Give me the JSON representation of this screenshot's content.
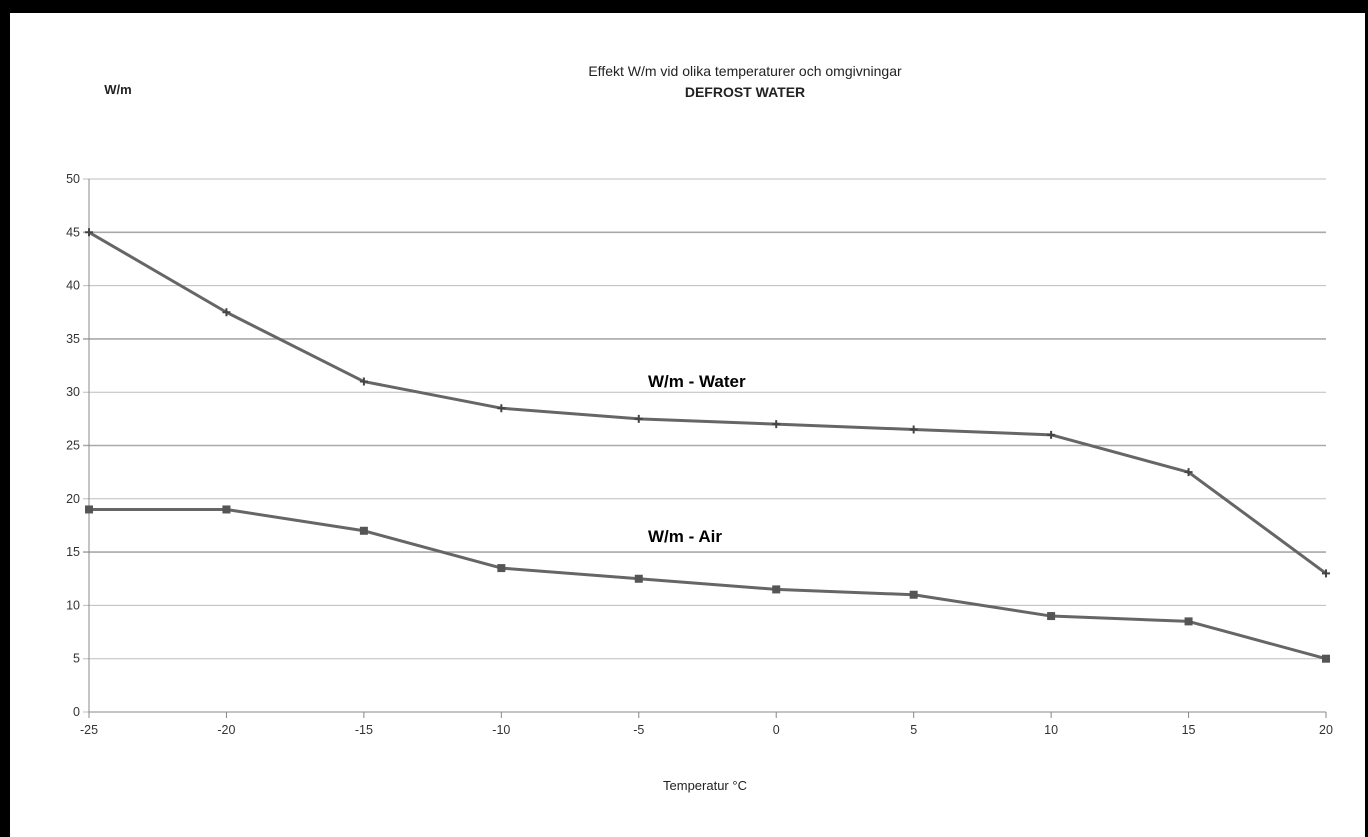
{
  "chart_data": {
    "type": "line",
    "title": "Effekt W/m vid olika temperaturer och omgivningar",
    "subtitle": "DEFROST WATER",
    "ylabel": "W/m",
    "xlabel": "Temperatur °C",
    "x": [
      -25,
      -20,
      -15,
      -10,
      -5,
      0,
      5,
      10,
      15,
      20
    ],
    "xlim": [
      -25,
      20
    ],
    "ylim": [
      0,
      50
    ],
    "yticks": [
      0,
      5,
      10,
      15,
      20,
      25,
      30,
      35,
      40,
      45,
      50
    ],
    "xticks": [
      "-25",
      "-20",
      "-15",
      "-10",
      "-5",
      "0",
      "5",
      "10",
      "15",
      "20"
    ],
    "grid": true,
    "series": [
      {
        "name": "W/m - Water",
        "marker": "plus",
        "color": "#666666",
        "values": [
          45,
          37.5,
          31,
          28.5,
          27.5,
          27,
          26.5,
          26,
          22.5,
          13
        ]
      },
      {
        "name": "W/m - Air",
        "marker": "square",
        "color": "#666666",
        "values": [
          19,
          19,
          17,
          13.5,
          12.5,
          11.5,
          11,
          9,
          8.5,
          5
        ]
      }
    ]
  }
}
